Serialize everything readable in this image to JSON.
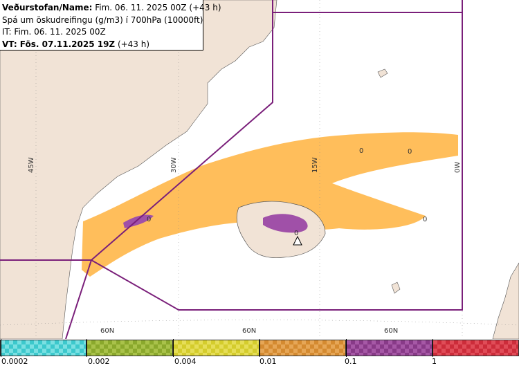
{
  "header": {
    "line1_bold": "Veðurstofan/Name:",
    "line1_rest": " Fim. 06. 11. 2025 00Z (+43 h)",
    "line2": "Spá um öskudreifingu (g/m3) í 700hPa (10000ft)",
    "line3": "IT: Fim. 06. 11. 2025 00Z",
    "line4_bold": "VT: Fös. 07.11.2025 19Z",
    "line4_rest": " (+43 h)"
  },
  "grid_labels": {
    "lon_45w": "45W",
    "lon_30w": "30W",
    "lon_15w": "15W",
    "lon_0w": "0W",
    "lat_60n_a": "60N",
    "lat_60n_b": "60N",
    "lat_60n_c": "60N"
  },
  "map_labels": {
    "zero_a": "0",
    "zero_b": "0",
    "zero_c": "0",
    "zero_d": "0",
    "zero_e": "0"
  },
  "legend": {
    "ticks": [
      "0.0002",
      "0.002",
      "0.004",
      "0.01",
      "0.1",
      "1"
    ],
    "colors": [
      "#3cc8cc",
      "#8aa82c",
      "#d4cc2c",
      "#d48a30",
      "#883a88",
      "#cc2c3a"
    ]
  },
  "colors": {
    "land": "#f1e3d6",
    "sea": "#ffffff",
    "ash_low": "#ffb84d",
    "ash_high": "#a050a8",
    "boundary": "#7a1f7a"
  }
}
